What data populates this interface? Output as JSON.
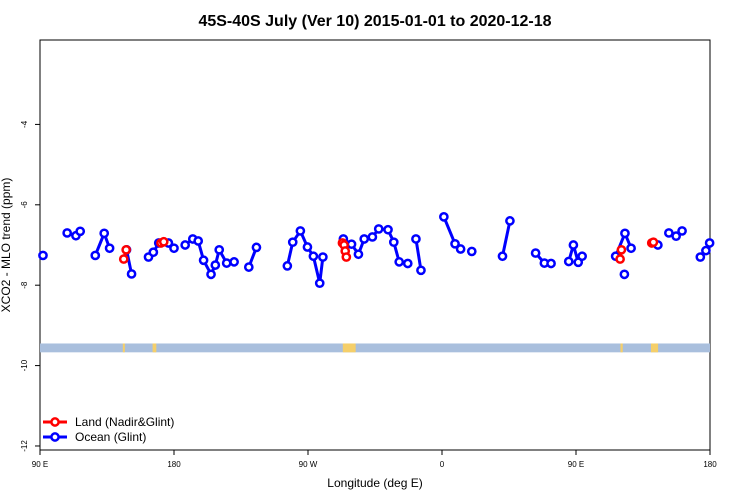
{
  "chart_data": {
    "type": "line",
    "title": "45S-40S July (Ver 10)   2015-01-01 to 2020-12-18",
    "xlabel": "Longitude (deg E)",
    "ylabel": "XCO2 - MLO trend (ppm)",
    "xlim": [
      90,
      450
    ],
    "ylim": [
      -12.1,
      -1.9
    ],
    "x_ticks": [
      {
        "value": 90,
        "label": "90 E"
      },
      {
        "value": 162,
        "label": "180"
      },
      {
        "value": 234,
        "label": "90 W"
      },
      {
        "value": 306,
        "label": "0"
      },
      {
        "value": 378,
        "label": "90 E"
      },
      {
        "value": 450,
        "label": "180"
      }
    ],
    "y_ticks": [
      {
        "value": -4,
        "label": "-4"
      },
      {
        "value": -6,
        "label": "-6"
      },
      {
        "value": -8,
        "label": "-8"
      },
      {
        "value": -10,
        "label": "-10"
      },
      {
        "value": -12,
        "label": "-12"
      }
    ],
    "land_band": {
      "y_top": -9.45,
      "y_bottom": -9.67,
      "ocean_color": "#a9bfdd",
      "land_color": "#f5cf6a"
    },
    "land_patches": [
      {
        "x0": 134.5,
        "x1": 135.6
      },
      {
        "x0": 150.5,
        "x1": 152.5
      },
      {
        "x0": 252.7,
        "x1": 259.6
      },
      {
        "x0": 401.9,
        "x1": 403.1
      },
      {
        "x0": 418.3,
        "x1": 422.1
      }
    ],
    "series": [
      {
        "name": "Land (Nadir&Glint)",
        "color": "#ff0000",
        "segments": [
          [
            [
              135.0,
              -7.35
            ],
            [
              136.3,
              -7.12
            ]
          ],
          [
            [
              155.0,
              -6.95
            ],
            [
              156.5,
              -6.92
            ]
          ],
          [
            [
              252.5,
              -6.95
            ],
            [
              253.4,
              -7.0
            ],
            [
              254.0,
              -7.15
            ],
            [
              254.6,
              -7.3
            ]
          ],
          [
            [
              401.7,
              -7.35
            ],
            [
              402.4,
              -7.12
            ]
          ],
          [
            [
              418.7,
              -6.95
            ],
            [
              419.6,
              -6.93
            ]
          ]
        ]
      },
      {
        "name": "Ocean (Glint)",
        "color": "#0000ff",
        "segments": [
          [
            [
              91.6,
              -7.26
            ]
          ],
          [
            [
              104.6,
              -6.7
            ],
            [
              109.3,
              -6.77
            ],
            [
              111.6,
              -6.66
            ]
          ],
          [
            [
              119.7,
              -7.26
            ],
            [
              124.5,
              -6.71
            ],
            [
              127.4,
              -7.08
            ]
          ],
          [
            [
              136.5,
              -7.12
            ],
            [
              139.2,
              -7.72
            ]
          ],
          [
            [
              148.3,
              -7.3
            ],
            [
              150.9,
              -7.18
            ],
            [
              153.8,
              -6.95
            ]
          ],
          [
            [
              159.0,
              -6.95
            ],
            [
              162.0,
              -7.08
            ]
          ],
          [
            [
              168.0,
              -7.0
            ],
            [
              172.1,
              -6.85
            ],
            [
              175.0,
              -6.9
            ],
            [
              177.9,
              -7.38
            ],
            [
              181.9,
              -7.73
            ],
            [
              184.2,
              -7.5
            ],
            [
              186.3,
              -7.12
            ],
            [
              190.3,
              -7.45
            ],
            [
              194.3,
              -7.42
            ]
          ],
          [
            [
              202.2,
              -7.55
            ],
            [
              206.3,
              -7.06
            ]
          ],
          [
            [
              222.9,
              -7.52
            ],
            [
              225.8,
              -6.93
            ],
            [
              229.9,
              -6.65
            ],
            [
              233.7,
              -7.05
            ],
            [
              236.9,
              -7.28
            ],
            [
              240.3,
              -7.95
            ],
            [
              242.0,
              -7.3
            ]
          ],
          [
            [
              253.0,
              -6.85
            ],
            [
              257.4,
              -6.98
            ],
            [
              261.1,
              -7.23
            ],
            [
              264.2,
              -6.85
            ],
            [
              268.6,
              -6.8
            ],
            [
              272.0,
              -6.6
            ],
            [
              277.0,
              -6.62
            ],
            [
              280.1,
              -6.93
            ],
            [
              283.0,
              -7.42
            ],
            [
              287.6,
              -7.46
            ]
          ],
          [
            [
              292.0,
              -6.85
            ],
            [
              294.7,
              -7.63
            ]
          ],
          [
            [
              307.0,
              -6.3
            ],
            [
              313.0,
              -6.97
            ],
            [
              316.0,
              -7.1
            ]
          ],
          [
            [
              322.0,
              -7.16
            ]
          ],
          [
            [
              338.5,
              -7.28
            ],
            [
              342.5,
              -6.4
            ]
          ],
          [
            [
              356.3,
              -7.2
            ],
            [
              361.0,
              -7.45
            ],
            [
              364.6,
              -7.46
            ]
          ],
          [
            [
              374.1,
              -7.41
            ],
            [
              376.6,
              -7.0
            ],
            [
              379.2,
              -7.43
            ],
            [
              381.3,
              -7.28
            ]
          ],
          [
            [
              404.0,
              -7.73
            ]
          ],
          [
            [
              399.3,
              -7.28
            ],
            [
              404.3,
              -6.71
            ],
            [
              407.6,
              -7.08
            ]
          ],
          [
            [
              427.9,
              -6.7
            ],
            [
              431.8,
              -6.78
            ],
            [
              435.0,
              -6.65
            ]
          ],
          [
            [
              422.0,
              -7.0
            ]
          ],
          [
            [
              444.8,
              -7.3
            ],
            [
              447.8,
              -7.14
            ]
          ],
          [
            [
              449.8,
              -6.95
            ]
          ]
        ]
      }
    ],
    "legend": {
      "position": "bottom-left",
      "entries": [
        "Land (Nadir&Glint)",
        "Ocean (Glint)"
      ]
    }
  }
}
